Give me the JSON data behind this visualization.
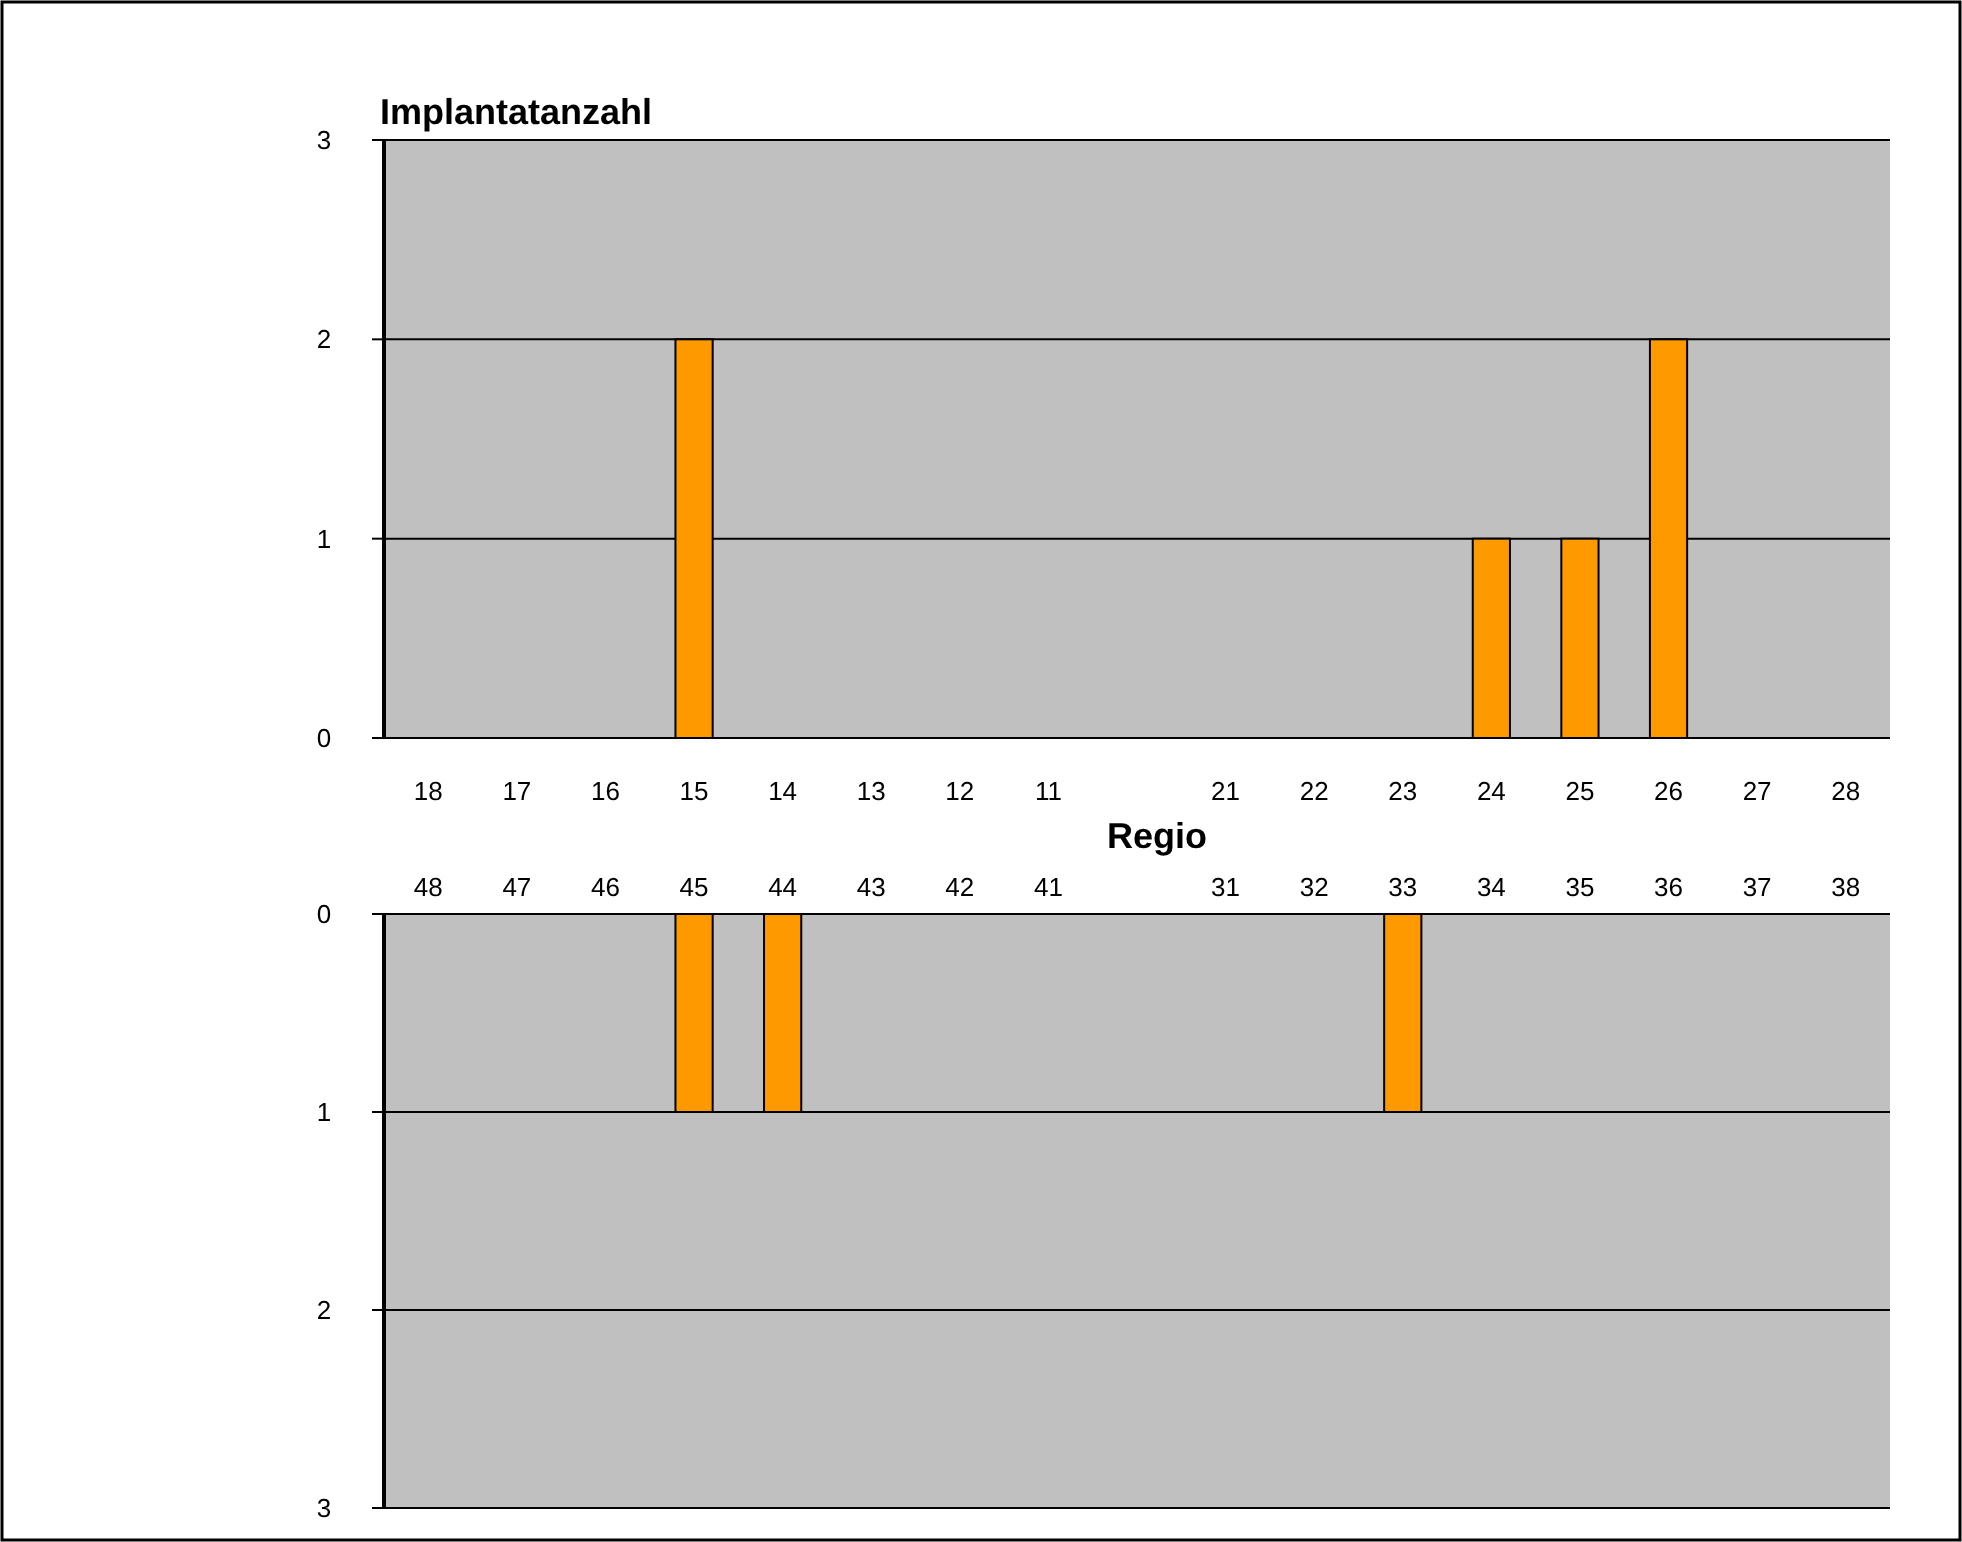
{
  "chart_data": [
    {
      "type": "bar",
      "title": "Implantatanzahl",
      "xlabel": "Regio",
      "categories": [
        "18",
        "17",
        "16",
        "15",
        "14",
        "13",
        "12",
        "11",
        null,
        "21",
        "22",
        "23",
        "24",
        "25",
        "26",
        "27",
        "28"
      ],
      "series": [
        {
          "color": "#ff9900",
          "values": [
            0,
            0,
            0,
            2,
            0,
            0,
            0,
            0,
            0,
            0,
            0,
            0,
            1,
            1,
            2,
            0,
            0
          ]
        }
      ],
      "ylim": [
        0,
        3
      ],
      "yticks": [
        0,
        1,
        2,
        3
      ],
      "grid": "y"
    },
    {
      "type": "bar",
      "categories": [
        "48",
        "47",
        "46",
        "45",
        "44",
        "43",
        "42",
        "41",
        null,
        "31",
        "32",
        "33",
        "34",
        "35",
        "36",
        "37",
        "38"
      ],
      "series": [
        {
          "color": "#ff9900",
          "values": [
            0,
            0,
            0,
            1,
            1,
            0,
            0,
            0,
            0,
            0,
            0,
            1,
            0,
            0,
            0,
            0,
            0
          ]
        }
      ],
      "ylim": [
        3,
        0
      ],
      "yticks": [
        0,
        1,
        2,
        3
      ],
      "grid": "y"
    }
  ]
}
